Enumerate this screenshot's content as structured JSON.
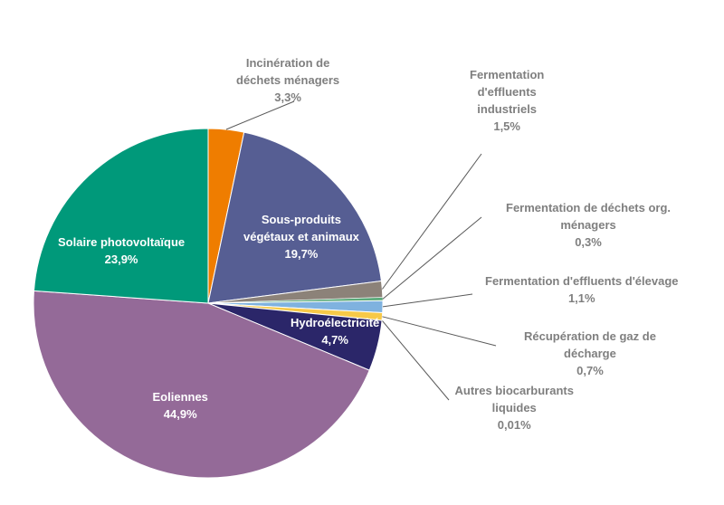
{
  "chart_data": {
    "type": "pie",
    "title": "",
    "start_angle_deg": 0,
    "direction": "clockwise",
    "legend": "none",
    "slices": [
      {
        "label": [
          "Incinération de",
          "déchets ménagers"
        ],
        "value": 3.3,
        "display": "3,3%",
        "color": "#ef7d00"
      },
      {
        "label": [
          "Sous-produits",
          "végétaux et animaux"
        ],
        "value": 19.7,
        "display": "19,7%",
        "color": "#565e93"
      },
      {
        "label": [
          "Fermentation",
          "d'effluents",
          "industriels"
        ],
        "value": 1.5,
        "display": "1,5%",
        "color": "#8c8279"
      },
      {
        "label": [
          "Fermentation de déchets org.",
          "ménagers"
        ],
        "value": 0.3,
        "display": "0,3%",
        "color": "#5aaa7a"
      },
      {
        "label": [
          "Fermentation d'effluents d'élevage"
        ],
        "value": 1.1,
        "display": "1,1%",
        "color": "#7fb2df"
      },
      {
        "label": [
          "Récupération de gaz de",
          "décharge"
        ],
        "value": 0.7,
        "display": "0,7%",
        "color": "#f7c948"
      },
      {
        "label": [
          "Autres biocarburants",
          "liquides"
        ],
        "value": 0.01,
        "display": "0,01%",
        "color": "#2e7dbf"
      },
      {
        "label": [
          "Hydroélectricité"
        ],
        "value": 4.7,
        "display": "4,7%",
        "color": "#2b2669"
      },
      {
        "label": [
          "Eoliennes"
        ],
        "value": 44.9,
        "display": "44,9%",
        "color": "#946a98"
      },
      {
        "label": [
          "Solaire photovoltaïque"
        ],
        "value": 23.9,
        "display": "23,9%",
        "color": "#00997a"
      }
    ]
  }
}
